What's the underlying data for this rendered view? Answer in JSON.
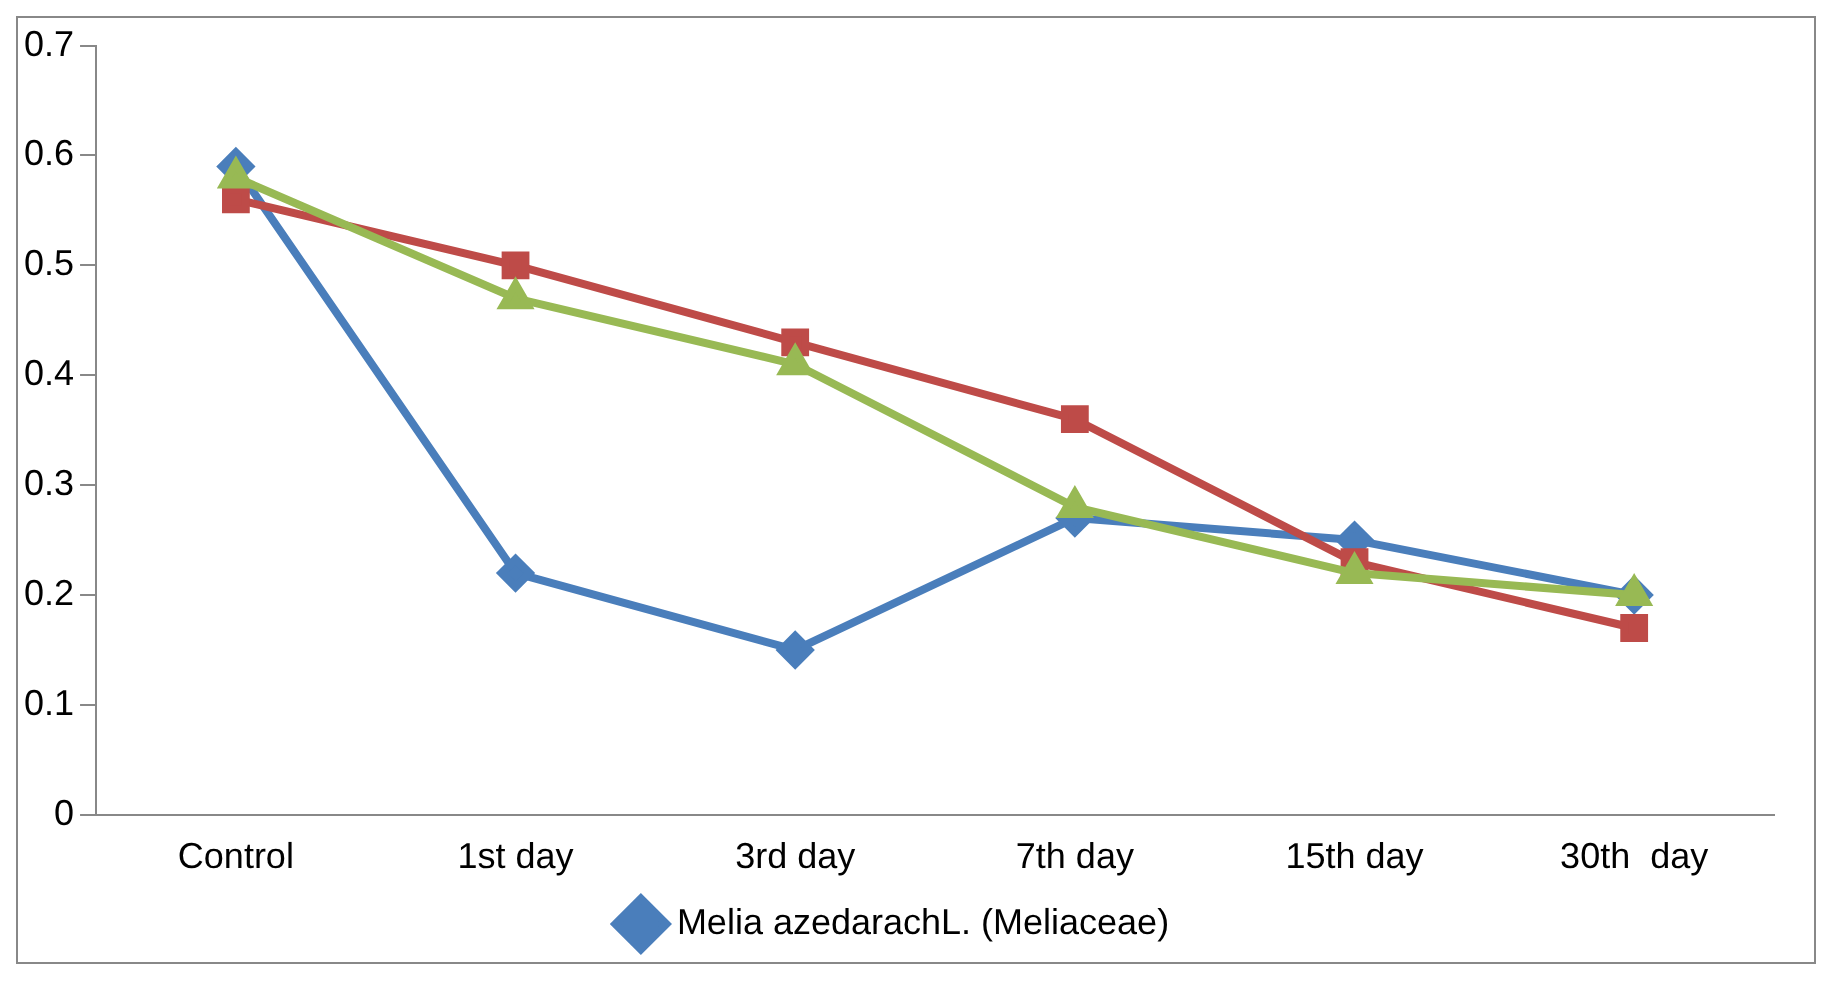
{
  "chart_data": {
    "type": "line",
    "categories": [
      "Control",
      "1st day",
      "3rd day",
      "7th day",
      "15th day",
      "30th  day"
    ],
    "series": [
      {
        "name": "Melia azedarachL. (Meliaceae)",
        "color": "#4a7ebb",
        "marker": "diamond",
        "values": [
          0.59,
          0.22,
          0.15,
          0.27,
          0.25,
          0.2
        ]
      },
      {
        "color": "#be4b48",
        "marker": "square",
        "values": [
          0.56,
          0.5,
          0.43,
          0.36,
          0.23,
          0.17
        ]
      },
      {
        "color": "#98b954",
        "marker": "triangle",
        "values": [
          0.58,
          0.47,
          0.41,
          0.28,
          0.22,
          0.2
        ]
      }
    ],
    "ylim": [
      0,
      0.7
    ],
    "yticks": [
      0,
      0.1,
      0.2,
      0.3,
      0.4,
      0.5,
      0.6,
      0.7
    ],
    "grid": false,
    "legend": "bottom",
    "line_style": "solid"
  }
}
